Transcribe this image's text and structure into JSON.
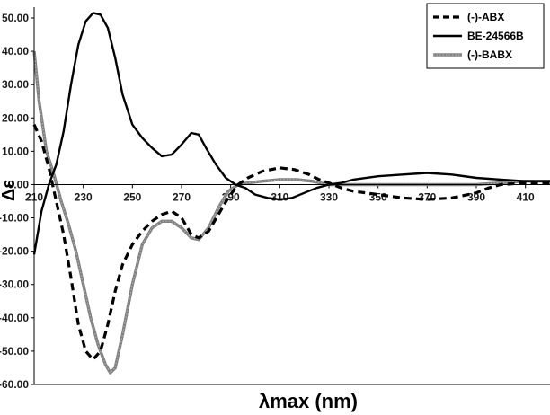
{
  "chart_data": {
    "type": "line",
    "xlabel": "λmax (nm)",
    "ylabel": "Δε",
    "xlim": [
      210,
      420
    ],
    "ylim": [
      -60,
      54
    ],
    "x_ticks": [
      "210",
      "230",
      "250",
      "270",
      "290",
      "310",
      "330",
      "350",
      "370",
      "390",
      "410"
    ],
    "y_ticks": [
      "50.00",
      "40.00",
      "30.00",
      "20.00",
      "10.00",
      "0.00",
      "-10.00",
      "-20.00",
      "-30.00",
      "-40.00",
      "-50.00",
      "-60.00"
    ],
    "grid": false,
    "legend_position": "top-right",
    "series": [
      {
        "name": "(-)-ABX",
        "color": "#000000",
        "dash": "dashed",
        "points": [
          [
            210,
            18
          ],
          [
            213,
            13
          ],
          [
            216,
            5
          ],
          [
            219,
            -5
          ],
          [
            222,
            -15
          ],
          [
            225,
            -28
          ],
          [
            228,
            -42
          ],
          [
            231,
            -50
          ],
          [
            234,
            -52.5
          ],
          [
            237,
            -50
          ],
          [
            240,
            -42
          ],
          [
            243,
            -32
          ],
          [
            246,
            -24
          ],
          [
            250,
            -18
          ],
          [
            254,
            -14
          ],
          [
            258,
            -11
          ],
          [
            262,
            -9
          ],
          [
            266,
            -8
          ],
          [
            270,
            -10
          ],
          [
            274,
            -15
          ],
          [
            277,
            -16
          ],
          [
            281,
            -14
          ],
          [
            285,
            -9
          ],
          [
            289,
            -4
          ],
          [
            293,
            0
          ],
          [
            297,
            2
          ],
          [
            303,
            4
          ],
          [
            310,
            5
          ],
          [
            316,
            4.5
          ],
          [
            322,
            3
          ],
          [
            326,
            1.5
          ],
          [
            330,
            0.5
          ],
          [
            335,
            -1
          ],
          [
            340,
            -2
          ],
          [
            350,
            -3
          ],
          [
            360,
            -4
          ],
          [
            370,
            -4.5
          ],
          [
            380,
            -4
          ],
          [
            390,
            -2.5
          ],
          [
            395,
            -1
          ],
          [
            400,
            0
          ],
          [
            410,
            0.5
          ],
          [
            420,
            0.5
          ]
        ]
      },
      {
        "name": "BE-24566B",
        "color": "#000000",
        "dash": "solid",
        "points": [
          [
            210,
            -21
          ],
          [
            213,
            -8
          ],
          [
            216,
            0
          ],
          [
            219,
            6
          ],
          [
            222,
            16
          ],
          [
            225,
            30
          ],
          [
            228,
            42
          ],
          [
            231,
            49
          ],
          [
            234,
            51.5
          ],
          [
            237,
            51
          ],
          [
            240,
            47
          ],
          [
            243,
            38
          ],
          [
            246,
            27
          ],
          [
            250,
            18
          ],
          [
            254,
            14
          ],
          [
            258,
            11
          ],
          [
            262,
            8.5
          ],
          [
            266,
            9
          ],
          [
            270,
            12
          ],
          [
            274,
            15.5
          ],
          [
            277,
            15
          ],
          [
            280,
            11
          ],
          [
            284,
            6
          ],
          [
            288,
            2
          ],
          [
            292,
            0
          ],
          [
            296,
            -1
          ],
          [
            300,
            -3
          ],
          [
            305,
            -4
          ],
          [
            310,
            -4.5
          ],
          [
            315,
            -4
          ],
          [
            320,
            -2.5
          ],
          [
            325,
            -1
          ],
          [
            330,
            0
          ],
          [
            335,
            0.5
          ],
          [
            340,
            1.5
          ],
          [
            350,
            2.5
          ],
          [
            360,
            3
          ],
          [
            370,
            3.5
          ],
          [
            380,
            3
          ],
          [
            390,
            2
          ],
          [
            400,
            1.5
          ],
          [
            410,
            1
          ],
          [
            420,
            1
          ]
        ]
      },
      {
        "name": "(-)-BABX",
        "color": "#808080",
        "dash": "dotted-heavy",
        "points": [
          [
            210,
            40
          ],
          [
            212,
            25
          ],
          [
            215,
            10
          ],
          [
            218,
            3
          ],
          [
            221,
            -5
          ],
          [
            224,
            -12
          ],
          [
            227,
            -20
          ],
          [
            230,
            -30
          ],
          [
            233,
            -40
          ],
          [
            236,
            -48
          ],
          [
            239,
            -54
          ],
          [
            241,
            -56.5
          ],
          [
            243,
            -55
          ],
          [
            246,
            -45
          ],
          [
            250,
            -30
          ],
          [
            254,
            -18
          ],
          [
            258,
            -13
          ],
          [
            262,
            -11
          ],
          [
            266,
            -11
          ],
          [
            270,
            -13
          ],
          [
            274,
            -16
          ],
          [
            277,
            -16.5
          ],
          [
            281,
            -13
          ],
          [
            285,
            -7
          ],
          [
            289,
            -2
          ],
          [
            293,
            0
          ],
          [
            297,
            0.5
          ],
          [
            303,
            1
          ],
          [
            310,
            1.5
          ],
          [
            317,
            1.5
          ],
          [
            323,
            1
          ],
          [
            330,
            0
          ],
          [
            340,
            0
          ],
          [
            350,
            0
          ],
          [
            360,
            0
          ],
          [
            370,
            0
          ],
          [
            380,
            0
          ],
          [
            390,
            0
          ],
          [
            400,
            0.5
          ],
          [
            410,
            1
          ],
          [
            420,
            1
          ]
        ]
      }
    ]
  }
}
